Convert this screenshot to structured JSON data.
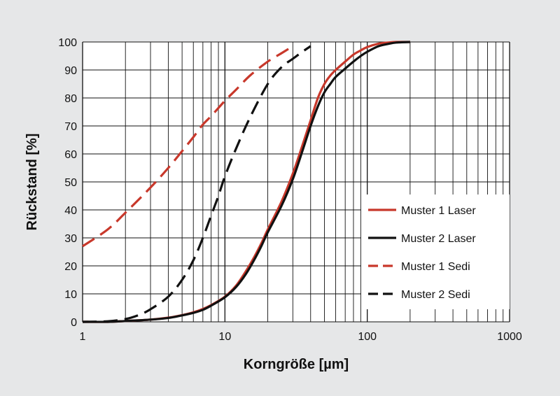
{
  "chart_data": {
    "type": "line",
    "xscale": "log",
    "xlim": [
      1,
      1000
    ],
    "ylim": [
      0,
      100
    ],
    "xlabel": "Korngröße [µm]",
    "ylabel": "Rückstand [%]",
    "grid": true,
    "legend_position": "lower-right",
    "xticks": [
      "1",
      "10",
      "100",
      "1000"
    ],
    "yticks": [
      "0",
      "10",
      "20",
      "30",
      "40",
      "50",
      "60",
      "70",
      "80",
      "90",
      "100"
    ],
    "series": [
      {
        "name": "Muster 1 Laser",
        "color": "#c8382b",
        "dash": false,
        "x": [
          1,
          1.5,
          2,
          3,
          4,
          5,
          6,
          7,
          8,
          10,
          12,
          14,
          16,
          18,
          20,
          25,
          30,
          35,
          40,
          45,
          50,
          55,
          60,
          70,
          80,
          90,
          100,
          120,
          140,
          160,
          200
        ],
        "y": [
          0,
          0,
          0.3,
          0.8,
          1.5,
          2.4,
          3.4,
          4.6,
          6,
          9,
          13,
          18,
          23,
          28,
          33,
          43,
          53,
          63,
          72,
          80,
          85,
          88,
          90,
          93,
          95.5,
          97,
          98.2,
          99.4,
          99.8,
          100,
          100
        ]
      },
      {
        "name": "Muster 2 Laser",
        "color": "#111111",
        "dash": false,
        "x": [
          1,
          1.5,
          2,
          3,
          4,
          5,
          6,
          7,
          8,
          10,
          12,
          14,
          16,
          18,
          20,
          25,
          30,
          35,
          40,
          45,
          50,
          55,
          60,
          70,
          80,
          90,
          100,
          120,
          140,
          160,
          200
        ],
        "y": [
          0,
          0,
          0.3,
          0.8,
          1.4,
          2.3,
          3.2,
          4.3,
          5.8,
          8.8,
          12.5,
          17,
          22,
          27,
          32,
          41.5,
          51,
          61,
          70,
          77,
          82,
          85,
          87.5,
          90.5,
          93,
          95,
          96.5,
          98.5,
          99.3,
          99.8,
          100
        ]
      },
      {
        "name": "Muster 1 Sedi",
        "color": "#c8382b",
        "dash": true,
        "x": [
          1,
          1.5,
          2,
          3,
          4,
          5,
          6,
          7,
          8,
          10,
          12,
          15,
          20,
          25,
          30
        ],
        "y": [
          27,
          33,
          39,
          48,
          55,
          61,
          66,
          70.5,
          73.5,
          79,
          83,
          88,
          93,
          96,
          98.5
        ]
      },
      {
        "name": "Muster 2 Sedi",
        "color": "#111111",
        "dash": true,
        "x": [
          1,
          1.5,
          2,
          2.5,
          3,
          4,
          5,
          6,
          7,
          8,
          9,
          10,
          12,
          15,
          20,
          25,
          30,
          35,
          40
        ],
        "y": [
          0,
          0.2,
          1,
          2.5,
          4.5,
          9,
          15,
          22,
          30,
          38,
          45,
          52,
          62,
          73,
          85,
          91,
          94,
          96.5,
          98.5
        ]
      }
    ]
  }
}
